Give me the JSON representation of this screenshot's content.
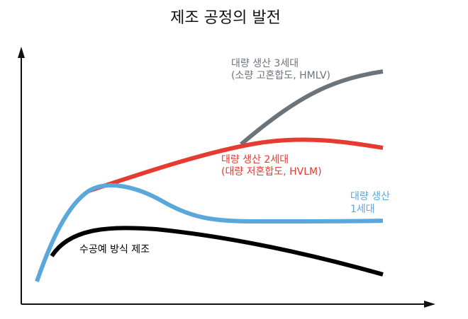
{
  "title": "제조 공정의 발전",
  "colors": {
    "axis": "#111111",
    "craft": "#000000",
    "gen1": "#5aa7dc",
    "gen2": "#e53b30",
    "gen3": "#6c747b"
  },
  "labels": {
    "craft": "수공예 방식 제조",
    "gen1_line1": "대량 생산",
    "gen1_line2": "1세대",
    "gen2_line1": "대량 생산 2세대",
    "gen2_line2": "(대량 저혼합도, HVLM)",
    "gen3_line1": "대량 생산 3세대",
    "gen3_line2": "(소량 고혼합도, HMLV)"
  }
}
